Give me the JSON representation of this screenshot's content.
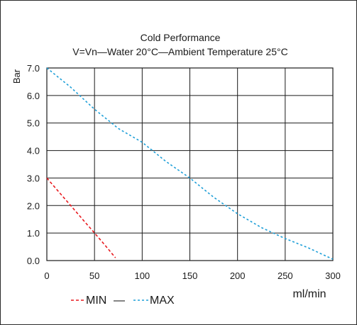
{
  "chart_data": {
    "type": "line",
    "title": "Cold Performance",
    "subtitle": "V=Vn—Water 20°C—Ambient Temperature 25°C",
    "xlabel": "ml/min",
    "ylabel": "Bar",
    "xlim": [
      0,
      300
    ],
    "ylim": [
      0,
      7
    ],
    "x_ticks": [
      "0",
      "50",
      "100",
      "150",
      "200",
      "250",
      "300"
    ],
    "y_ticks": [
      "0.0",
      "1.0",
      "2.0",
      "3.0",
      "4.0",
      "5.0",
      "6.0",
      "7.0"
    ],
    "grid": true,
    "legend_position": "bottom-left",
    "legend_separator": "—",
    "series": [
      {
        "name": "MIN",
        "color": "#e8191e",
        "style": "dashed",
        "points": [
          [
            0,
            3.0
          ],
          [
            10,
            2.6
          ],
          [
            25,
            2.0
          ],
          [
            40,
            1.4
          ],
          [
            50,
            1.0
          ],
          [
            60,
            0.6
          ],
          [
            72,
            0.1
          ]
        ]
      },
      {
        "name": "MAX",
        "color": "#1e9fd8",
        "style": "dotted",
        "points": [
          [
            0,
            7.0
          ],
          [
            25,
            6.3
          ],
          [
            50,
            5.5
          ],
          [
            75,
            4.8
          ],
          [
            100,
            4.3
          ],
          [
            125,
            3.6
          ],
          [
            150,
            3.0
          ],
          [
            175,
            2.3
          ],
          [
            200,
            1.7
          ],
          [
            225,
            1.2
          ],
          [
            250,
            0.8
          ],
          [
            275,
            0.45
          ],
          [
            300,
            0.05
          ]
        ]
      }
    ]
  }
}
